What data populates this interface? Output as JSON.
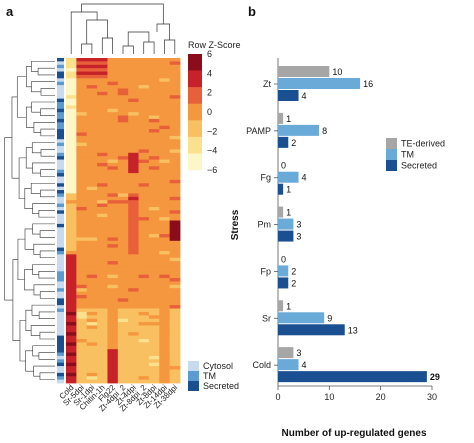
{
  "panels": {
    "a": "a",
    "b": "b"
  },
  "chart_data": [
    {
      "type": "heatmap",
      "columns": [
        "Cold",
        "Sr-5dpi",
        "Sr-1dpi",
        "Chitin-1h",
        "Flg22",
        "Zt-4dpi_2",
        "Zt-4dpi",
        "Zt-8dpi_2",
        "Zt-8dpi",
        "Zt-14dpi",
        "Zt-38dpi"
      ],
      "color_scale": {
        "title": "Row Z-Score",
        "ticks": [
          "6",
          "4",
          "2",
          "0",
          "−2",
          "−4",
          "−6"
        ],
        "colors": [
          "#8b0c1a",
          "#c7222a",
          "#e8603a",
          "#f4973f",
          "#f8c061",
          "#fbe08d",
          "#fdf6c6"
        ]
      },
      "row_groups": {
        "legend": [
          "Cytosol",
          "TM",
          "Secreted"
        ],
        "colors": [
          "#c6dbef",
          "#5b9bd1",
          "#1a4f91"
        ]
      }
    },
    {
      "type": "bar",
      "orientation": "horizontal",
      "categories": [
        "Zt",
        "PAMP",
        "Fg",
        "Pm",
        "Fp",
        "Sr",
        "Cold"
      ],
      "series": [
        {
          "name": "TE-derived",
          "color": "#a6a6a6",
          "values": [
            10,
            1,
            0,
            1,
            0,
            1,
            3
          ]
        },
        {
          "name": "TM",
          "color": "#6aaad8",
          "values": [
            16,
            8,
            4,
            3,
            2,
            9,
            4
          ]
        },
        {
          "name": "Secreted",
          "color": "#1a4f91",
          "values": [
            4,
            2,
            1,
            3,
            2,
            13,
            29
          ]
        }
      ],
      "xlabel": "Number of up-regulated genes",
      "ylabel": "Stress",
      "xlim": [
        0,
        30
      ],
      "xticks": [
        "0",
        "10",
        "20",
        "30"
      ],
      "legend_position": "right"
    }
  ]
}
